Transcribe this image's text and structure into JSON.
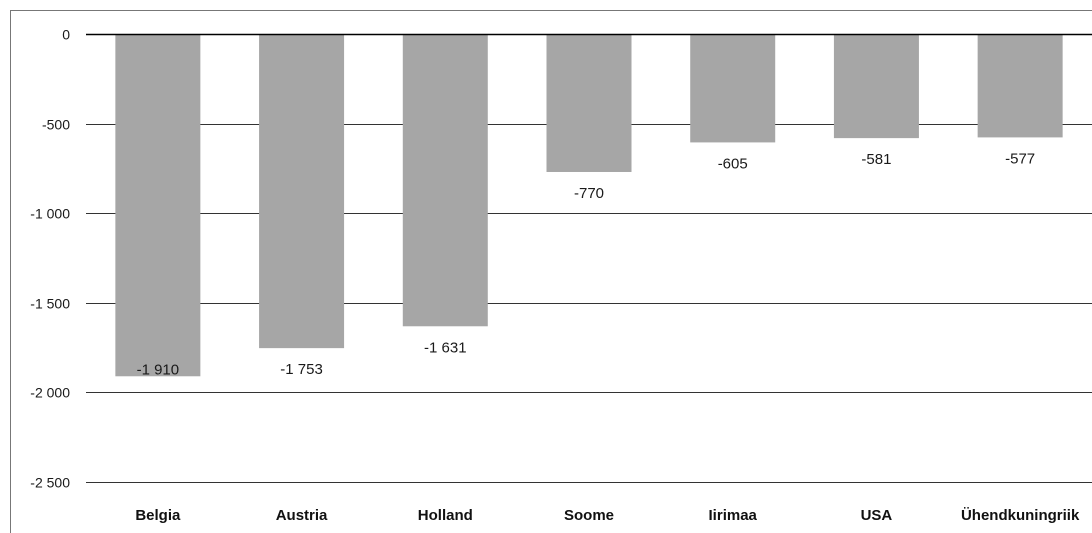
{
  "chart_data": {
    "type": "bar",
    "title": "",
    "xlabel": "",
    "ylabel": "",
    "categories": [
      "Belgia",
      "Austria",
      "Holland",
      "Soome",
      "Iirimaa",
      "USA",
      "Ühendkuningriik"
    ],
    "values": [
      -1910,
      -1753,
      -1631,
      -770,
      -605,
      -581,
      -577
    ],
    "value_labels": [
      "-1 910",
      "-1 753",
      "-1 631",
      "-770",
      "-605",
      "-581",
      "-577"
    ],
    "ylim": [
      -2500,
      0
    ],
    "yticks": [
      0,
      -500,
      -1000,
      -1500,
      -2000,
      -2500
    ],
    "ytick_labels": [
      "0",
      "-500",
      "-1 000",
      "-1 500",
      "-2 000",
      "-2 500"
    ],
    "grid": true,
    "legend": "none",
    "colors": {
      "bar": "#a6a6a6",
      "grid": "#333333",
      "axis": "#000000",
      "frame": "#777777"
    }
  }
}
